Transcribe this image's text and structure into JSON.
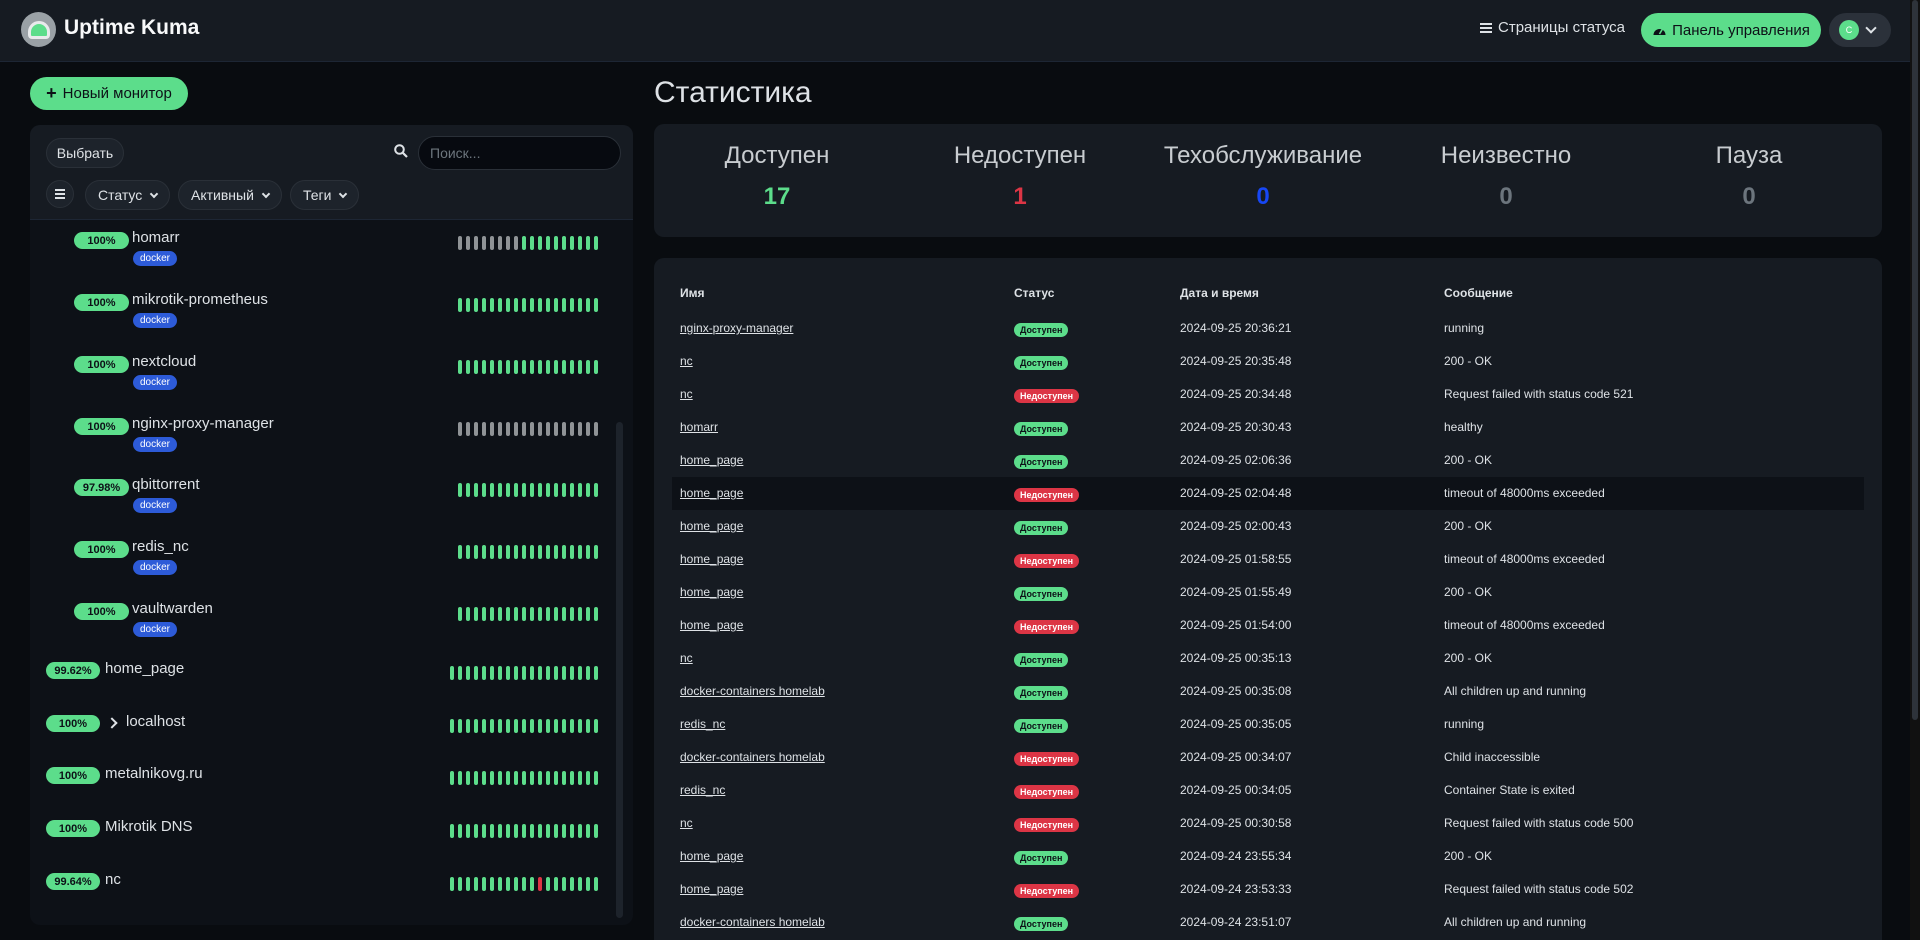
{
  "header": {
    "brand": "Uptime Kuma",
    "status_pages_label": "Страницы статуса",
    "dashboard_label": "Панель управления",
    "avatar_letter": "C"
  },
  "sidebar": {
    "new_monitor_label": "Новый монитор",
    "select_label": "Выбрать",
    "search_placeholder": "Поиск...",
    "filters": [
      "Статус",
      "Активный",
      "Теги"
    ],
    "monitors": [
      {
        "name": "homarr",
        "uptime": "100%",
        "tag": "docker",
        "child": true,
        "beats": "gggggggguuuuuuuuuu"
      },
      {
        "name": "mikrotik-prometheus",
        "uptime": "100%",
        "tag": "docker",
        "child": true,
        "beats": "uuuuuuuuuuuuuuuuuu"
      },
      {
        "name": "nextcloud",
        "uptime": "100%",
        "tag": "docker",
        "child": true,
        "beats": "uuuuuuuuuuuuuuuuuu"
      },
      {
        "name": "nginx-proxy-manager",
        "uptime": "100%",
        "tag": "docker",
        "child": true,
        "beats": "gggggggggggggggggg"
      },
      {
        "name": "qbittorrent",
        "uptime": "97.98%",
        "tag": "docker",
        "child": true,
        "beats": "uuuuuuuuuuuuuuuuuu"
      },
      {
        "name": "redis_nc",
        "uptime": "100%",
        "tag": "docker",
        "child": true,
        "beats": "uuuuuuuuuuuuuuuuuu"
      },
      {
        "name": "vaultwarden",
        "uptime": "100%",
        "tag": "docker",
        "child": true,
        "beats": "uuuuuuuuuuuuuuuuuu"
      },
      {
        "name": "home_page",
        "uptime": "99.62%",
        "tag": "",
        "child": false,
        "beats": "uuuuuuuuuuuuuuuuuuu"
      },
      {
        "name": "localhost",
        "uptime": "100%",
        "tag": "",
        "child": false,
        "group": true,
        "beats": "uuuuuuuuuuuuuuuuuuu"
      },
      {
        "name": "metalnikovg.ru",
        "uptime": "100%",
        "tag": "",
        "child": false,
        "beats": "uuuuuuuuuuuuuuuuuuu"
      },
      {
        "name": "Mikrotik DNS",
        "uptime": "100%",
        "tag": "",
        "child": false,
        "beats": "uuuuuuuuuuuuuuuuuuu"
      },
      {
        "name": "nc",
        "uptime": "99.64%",
        "tag": "",
        "child": false,
        "beats": "uuuuuuuuuuuruuuuuuu"
      }
    ]
  },
  "main": {
    "title": "Статистика",
    "stats": [
      {
        "label": "Доступен",
        "value": "17",
        "color": "#5cdd8b"
      },
      {
        "label": "Недоступен",
        "value": "1",
        "color": "#dc3545"
      },
      {
        "label": "Техобслуживание",
        "value": "0",
        "color": "#1747f5"
      },
      {
        "label": "Неизвестно",
        "value": "0",
        "color": "#6c757d"
      },
      {
        "label": "Пауза",
        "value": "0",
        "color": "#6c757d"
      }
    ],
    "table_headers": [
      "Имя",
      "Статус",
      "Дата и время",
      "Сообщение"
    ],
    "events": [
      {
        "name": "nginx-proxy-manager",
        "status": "Доступен",
        "up": true,
        "date": "2024-09-25 20:36:21",
        "message": "running"
      },
      {
        "name": "nc",
        "status": "Доступен",
        "up": true,
        "date": "2024-09-25 20:35:48",
        "message": "200 - OK"
      },
      {
        "name": "nc",
        "status": "Недоступен",
        "up": false,
        "date": "2024-09-25 20:34:48",
        "message": "Request failed with status code 521"
      },
      {
        "name": "homarr",
        "status": "Доступен",
        "up": true,
        "date": "2024-09-25 20:30:43",
        "message": "healthy"
      },
      {
        "name": "home_page",
        "status": "Доступен",
        "up": true,
        "date": "2024-09-25 02:06:36",
        "message": "200 - OK"
      },
      {
        "name": "home_page",
        "status": "Недоступен",
        "up": false,
        "date": "2024-09-25 02:04:48",
        "message": "timeout of 48000ms exceeded"
      },
      {
        "name": "home_page",
        "status": "Доступен",
        "up": true,
        "date": "2024-09-25 02:00:43",
        "message": "200 - OK"
      },
      {
        "name": "home_page",
        "status": "Недоступен",
        "up": false,
        "date": "2024-09-25 01:58:55",
        "message": "timeout of 48000ms exceeded"
      },
      {
        "name": "home_page",
        "status": "Доступен",
        "up": true,
        "date": "2024-09-25 01:55:49",
        "message": "200 - OK"
      },
      {
        "name": "home_page",
        "status": "Недоступен",
        "up": false,
        "date": "2024-09-25 01:54:00",
        "message": "timeout of 48000ms exceeded"
      },
      {
        "name": "nc",
        "status": "Доступен",
        "up": true,
        "date": "2024-09-25 00:35:13",
        "message": "200 - OK"
      },
      {
        "name": "docker-containers homelab",
        "status": "Доступен",
        "up": true,
        "date": "2024-09-25 00:35:08",
        "message": "All children up and running"
      },
      {
        "name": "redis_nc",
        "status": "Доступен",
        "up": true,
        "date": "2024-09-25 00:35:05",
        "message": "running"
      },
      {
        "name": "docker-containers homelab",
        "status": "Недоступен",
        "up": false,
        "date": "2024-09-25 00:34:07",
        "message": "Child inaccessible"
      },
      {
        "name": "redis_nc",
        "status": "Недоступен",
        "up": false,
        "date": "2024-09-25 00:34:05",
        "message": "Container State is exited"
      },
      {
        "name": "nc",
        "status": "Недоступен",
        "up": false,
        "date": "2024-09-25 00:30:58",
        "message": "Request failed with status code 500"
      },
      {
        "name": "home_page",
        "status": "Доступен",
        "up": true,
        "date": "2024-09-24 23:55:34",
        "message": "200 - OK"
      },
      {
        "name": "home_page",
        "status": "Недоступен",
        "up": false,
        "date": "2024-09-24 23:53:33",
        "message": "Request failed with status code 502"
      },
      {
        "name": "docker-containers homelab",
        "status": "Доступен",
        "up": true,
        "date": "2024-09-24 23:51:07",
        "message": "All children up and running"
      }
    ]
  }
}
